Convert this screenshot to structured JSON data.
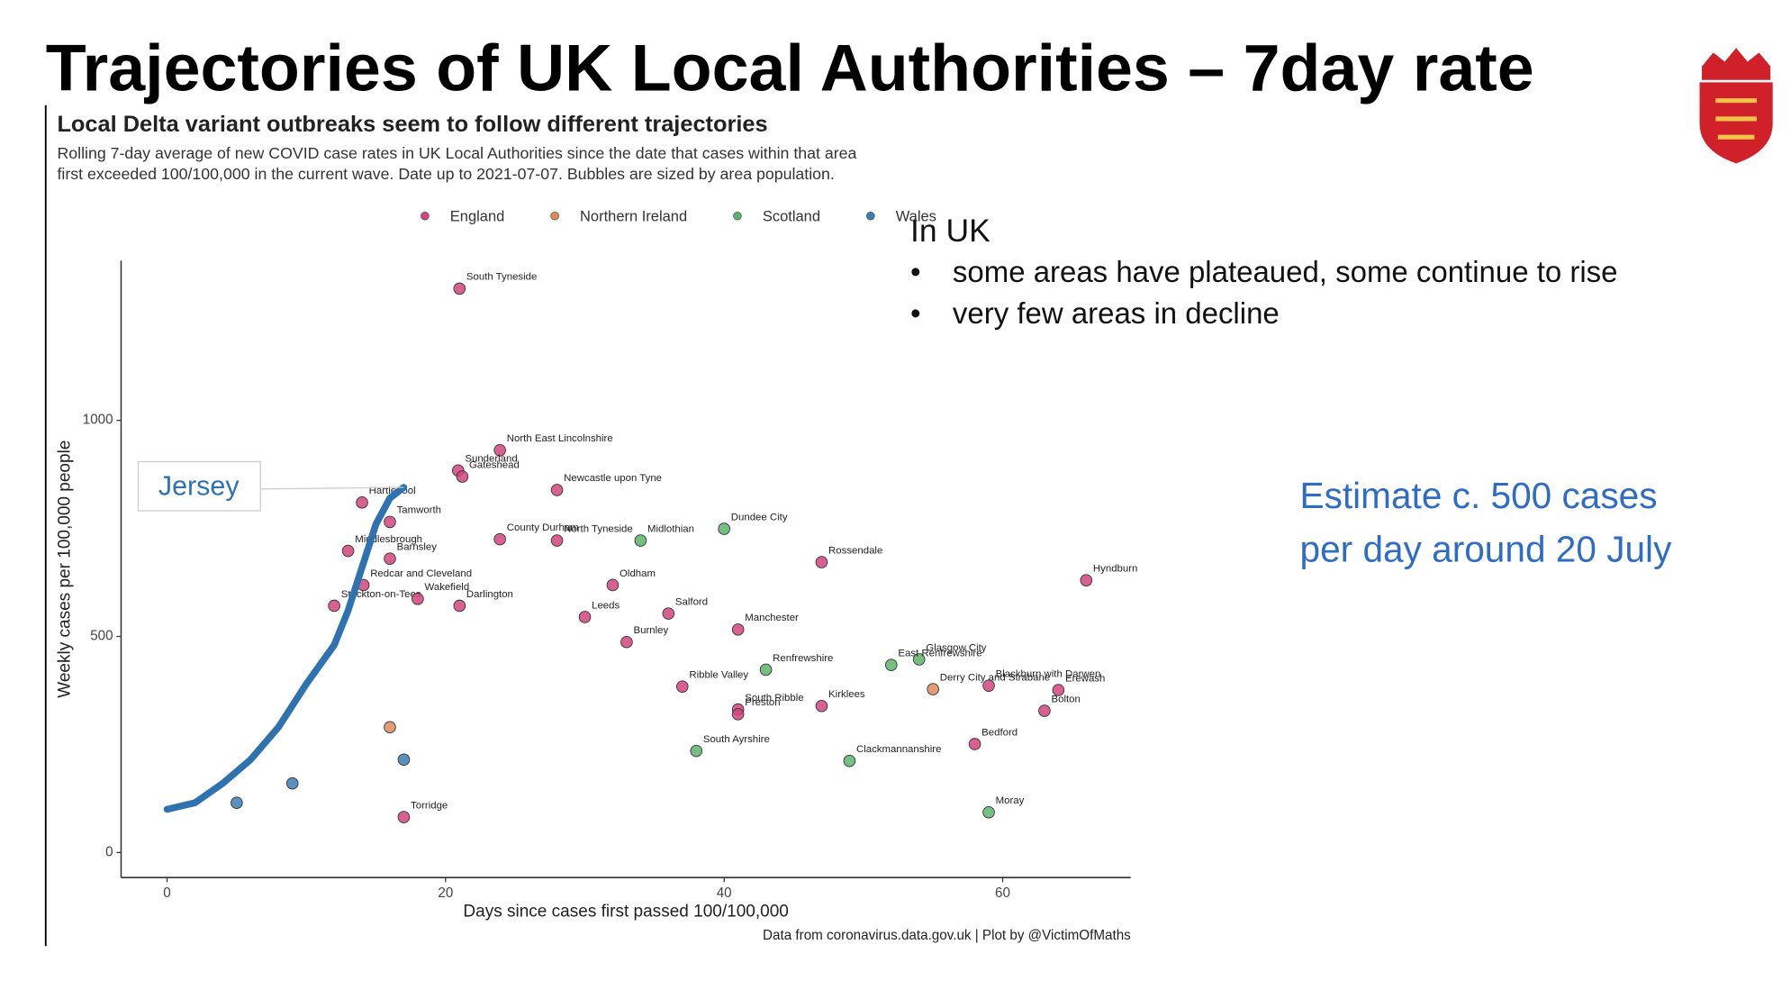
{
  "slide": {
    "title": "Trajectories of UK Local Authorities – 7day rate",
    "heading": "In UK",
    "bullets": [
      "some areas have plateaued, some continue to rise",
      "very few areas in decline"
    ],
    "estimate": [
      "Estimate c. 500 cases",
      "per day around 20 July"
    ]
  },
  "chart_data": {
    "type": "scatter",
    "title": "Local Delta variant outbreaks seem to follow different trajectories",
    "subtitle": [
      "Rolling 7-day average of new COVID case rates in UK Local Authorities since the date that cases within that area",
      "first exceeded 100/100,000 in the current wave. Date up to 2021-07-07. Bubbles are sized by area population."
    ],
    "x_label": "Days since cases first passed 100/100,000",
    "y_label": "Weekly cases per 100,000 people",
    "source": "Data from coronavirus.data.gov.uk | Plot by @VictimOfMaths",
    "xlim": [
      -3.3,
      69.2
    ],
    "ylim": [
      -58,
      1370
    ],
    "xticks": [
      0,
      20,
      40,
      60
    ],
    "yticks": [
      0,
      500,
      1000
    ],
    "series": [
      {
        "name": "England",
        "color": "#d2457f",
        "x": [
          21.0,
          23.9,
          20.9,
          21.2,
          14.0,
          28.0,
          23.9,
          13.0,
          16.0,
          47.0,
          14.1,
          16.0,
          28.0,
          32.0,
          66.0,
          12.0,
          18.0,
          21.0,
          30.0,
          36.0,
          41.0,
          33.0,
          59.0,
          37.0,
          41.0,
          64.0,
          47.0,
          41.0,
          63.0,
          58.0,
          17.0
        ],
        "values": [
          1305,
          931,
          884,
          870,
          810,
          839,
          725,
          698,
          765,
          672,
          619,
          680,
          722,
          619,
          630,
          571,
          587,
          571,
          545,
          553,
          516,
          487,
          386,
          384,
          331,
          376,
          339,
          320,
          328,
          251,
          82
        ],
        "labels": [
          "South Tyneside",
          "North East Lincolnshire",
          "Sunderland",
          "Gateshead",
          "Hartlepool",
          "Newcastle upon Tyne",
          "County Durham",
          "Middlesbrough",
          "Tamworth",
          "Rossendale",
          "Redcar and Cleveland",
          "Barnsley",
          "North Tyneside",
          "Oldham",
          "Hyndburn",
          "Stockton-on-Tees",
          "Wakefield",
          "Darlington",
          "Leeds",
          "Salford",
          "Manchester",
          "Burnley",
          "Blackburn with Darwen",
          "Ribble Valley",
          "South Ribble",
          "Erewash",
          "Kirklees",
          "Preston",
          "Bolton",
          "Bedford",
          "Torridge"
        ]
      },
      {
        "name": "Northern Ireland",
        "color": "#e0895c",
        "x": [
          55.0,
          16.0
        ],
        "values": [
          378,
          290
        ],
        "labels": [
          "Derry City and Strabane",
          null
        ]
      },
      {
        "name": "Scotland",
        "color": "#5db56b",
        "x": [
          40.0,
          34.0,
          43.0,
          54.0,
          52.0,
          49.0,
          38.0,
          59.0
        ],
        "values": [
          749,
          722,
          423,
          447,
          434,
          212,
          235,
          93
        ],
        "labels": [
          "Dundee City",
          "Midlothian",
          "Renfrewshire",
          "Glasgow City",
          "East Renfrewshire",
          "Clackmannanshire",
          "South Ayrshire",
          "Moray"
        ]
      },
      {
        "name": "Wales",
        "color": "#3b7db4",
        "x": [
          5.0,
          9.0,
          17.0
        ],
        "values": [
          115,
          160,
          215
        ],
        "labels": [
          null,
          null,
          null
        ]
      },
      {
        "name": "Jersey",
        "type": "line",
        "color": "#2f72b0",
        "x": [
          0,
          2,
          4,
          6,
          8,
          10,
          12,
          13,
          14,
          15,
          16,
          17
        ],
        "values": [
          100,
          115,
          160,
          215,
          290,
          390,
          480,
          560,
          660,
          760,
          820,
          845
        ]
      }
    ]
  }
}
